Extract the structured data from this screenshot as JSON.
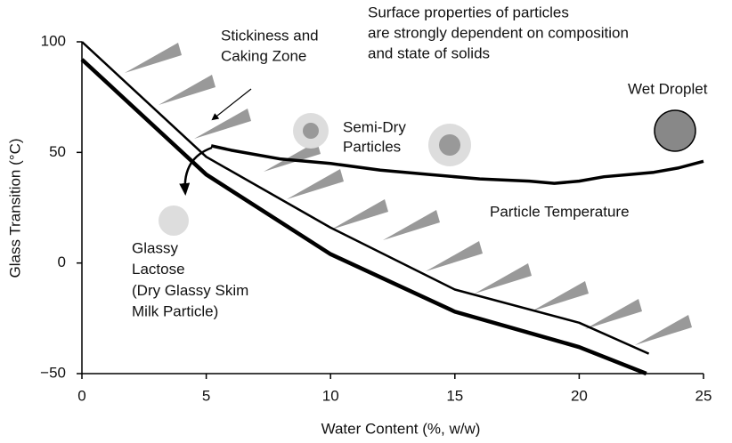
{
  "chart_data": {
    "type": "line",
    "xlabel": "Water Content (%, w/w)",
    "ylabel": "Glass Transition (°C)",
    "xlim": [
      0,
      25
    ],
    "xticks": [
      0,
      5,
      10,
      15,
      20,
      25
    ],
    "ylim": [
      -50,
      100
    ],
    "yticks": [
      {
        "value": -50,
        "label": "−50"
      },
      0,
      50,
      100
    ],
    "series": [
      {
        "color": "#000000",
        "x": [
          0,
          5,
          10,
          15,
          20,
          22.7
        ],
        "values": [
          92,
          40,
          4,
          -22,
          -38,
          -50
        ]
      },
      {
        "color": "#000000",
        "x": [
          0,
          5,
          10,
          15,
          20,
          22.8
        ],
        "values": [
          100,
          48,
          16,
          -12,
          -27,
          -41
        ]
      },
      {
        "color": "#000000",
        "x": [
          5.2,
          6,
          8,
          10,
          12,
          14,
          16,
          18,
          19,
          20,
          21,
          22,
          23,
          24,
          25
        ],
        "values": [
          53,
          51,
          47,
          45,
          42,
          40,
          38,
          37,
          36,
          37,
          39,
          40,
          41,
          43,
          46
        ]
      }
    ],
    "annotations": [
      [
        "Surface properties of particles",
        "are strongly dependent on composition",
        "and state of solids"
      ],
      [
        "Stickiness and",
        "Caking Zone"
      ],
      [
        "Wet Droplet"
      ],
      [
        "Semi-Dry",
        "Particles"
      ],
      [
        "Particle Temperature"
      ],
      [
        "Glassy",
        "Lactose",
        "(Dry Glassy Skim",
        "Milk Particle)"
      ]
    ]
  }
}
